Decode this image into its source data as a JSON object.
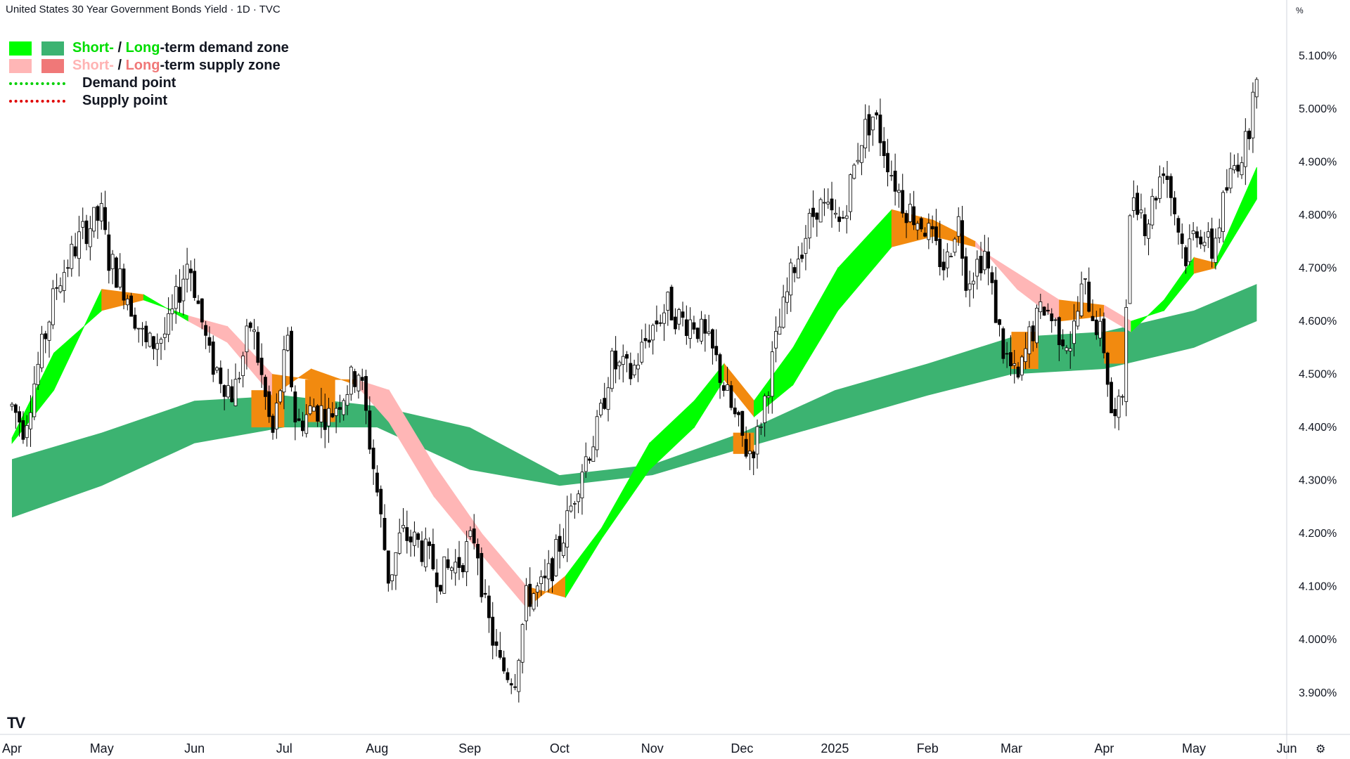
{
  "header": {
    "title": "United States 30 Year Government Bonds Yield · 1D · TVC",
    "unit": "%"
  },
  "legend": {
    "demand": {
      "short": "Short-",
      "sep": " / ",
      "long": "Long",
      "rest": "-term demand zone"
    },
    "supply": {
      "short": "Short-",
      "sep": " / ",
      "long": "Long",
      "rest": "-term supply zone"
    },
    "demand_point": "Demand point",
    "supply_point": "Supply point"
  },
  "colors": {
    "short_demand": "#00ff00",
    "long_demand": "#3cb371",
    "short_supply": "#ffb6b6",
    "long_supply": "#f07878",
    "overlap": "#f28a0f",
    "demand_point": "#00d000",
    "supply_point": "#e00000",
    "candle": "#000000",
    "legend_green_text": "#00dd00",
    "legend_pink_text": "#ffb3b3"
  },
  "footer": {
    "logo": "TV",
    "settings_icon": "gear-icon"
  },
  "chart_data": {
    "type": "candlestick",
    "title": "United States 30 Year Government Bonds Yield · 1D · TVC",
    "y_unit": "%",
    "ylim": [
      3.86,
      5.16
    ],
    "y_ticks": [
      "5.100%",
      "5.000%",
      "4.900%",
      "4.800%",
      "4.700%",
      "4.600%",
      "4.500%",
      "4.400%",
      "4.300%",
      "4.200%",
      "4.100%",
      "4.000%",
      "3.900%"
    ],
    "x_ticks": [
      "Apr",
      "May",
      "Jun",
      "Jul",
      "Aug",
      "Sep",
      "Oct",
      "Nov",
      "Dec",
      "2025",
      "Feb",
      "Mar",
      "Apr",
      "May",
      "Jun"
    ],
    "price_path": [
      {
        "date": "2024-04-01",
        "yield": 4.44
      },
      {
        "date": "2024-04-05",
        "yield": 4.4
      },
      {
        "date": "2024-04-16",
        "yield": 4.67
      },
      {
        "date": "2024-04-25",
        "yield": 4.77
      },
      {
        "date": "2024-05-01",
        "yield": 4.8
      },
      {
        "date": "2024-05-03",
        "yield": 4.72
      },
      {
        "date": "2024-05-09",
        "yield": 4.66
      },
      {
        "date": "2024-05-16",
        "yield": 4.55
      },
      {
        "date": "2024-05-23",
        "yield": 4.58
      },
      {
        "date": "2024-05-30",
        "yield": 4.72
      },
      {
        "date": "2024-06-06",
        "yield": 4.53
      },
      {
        "date": "2024-06-14",
        "yield": 4.46
      },
      {
        "date": "2024-06-20",
        "yield": 4.6
      },
      {
        "date": "2024-06-27",
        "yield": 4.38
      },
      {
        "date": "2024-07-02",
        "yield": 4.56
      },
      {
        "date": "2024-07-05",
        "yield": 4.4
      },
      {
        "date": "2024-07-11",
        "yield": 4.44
      },
      {
        "date": "2024-07-16",
        "yield": 4.42
      },
      {
        "date": "2024-07-19",
        "yield": 4.45
      },
      {
        "date": "2024-07-26",
        "yield": 4.51
      },
      {
        "date": "2024-08-01",
        "yield": 4.28
      },
      {
        "date": "2024-08-05",
        "yield": 4.11
      },
      {
        "date": "2024-08-09",
        "yield": 4.2
      },
      {
        "date": "2024-08-15",
        "yield": 4.18
      },
      {
        "date": "2024-08-22",
        "yield": 4.12
      },
      {
        "date": "2024-08-29",
        "yield": 4.15
      },
      {
        "date": "2024-09-03",
        "yield": 4.2
      },
      {
        "date": "2024-09-06",
        "yield": 4.06
      },
      {
        "date": "2024-09-11",
        "yield": 3.95
      },
      {
        "date": "2024-09-16",
        "yield": 3.93
      },
      {
        "date": "2024-09-20",
        "yield": 4.08
      },
      {
        "date": "2024-09-26",
        "yield": 4.1
      },
      {
        "date": "2024-10-03",
        "yield": 4.21
      },
      {
        "date": "2024-10-08",
        "yield": 4.32
      },
      {
        "date": "2024-10-14",
        "yield": 4.4
      },
      {
        "date": "2024-10-18",
        "yield": 4.52
      },
      {
        "date": "2024-10-25",
        "yield": 4.5
      },
      {
        "date": "2024-10-31",
        "yield": 4.58
      },
      {
        "date": "2024-11-06",
        "yield": 4.63
      },
      {
        "date": "2024-11-11",
        "yield": 4.6
      },
      {
        "date": "2024-11-15",
        "yield": 4.6
      },
      {
        "date": "2024-11-22",
        "yield": 4.53
      },
      {
        "date": "2024-11-27",
        "yield": 4.44
      },
      {
        "date": "2024-12-03",
        "yield": 4.35
      },
      {
        "date": "2024-12-06",
        "yield": 4.38
      },
      {
        "date": "2024-12-12",
        "yield": 4.55
      },
      {
        "date": "2024-12-18",
        "yield": 4.7
      },
      {
        "date": "2024-12-26",
        "yield": 4.82
      },
      {
        "date": "2025-01-03",
        "yield": 4.78
      },
      {
        "date": "2025-01-10",
        "yield": 4.95
      },
      {
        "date": "2025-01-14",
        "yield": 4.99
      },
      {
        "date": "2025-01-20",
        "yield": 4.88
      },
      {
        "date": "2025-01-24",
        "yield": 4.82
      },
      {
        "date": "2025-01-31",
        "yield": 4.78
      },
      {
        "date": "2025-02-04",
        "yield": 4.73
      },
      {
        "date": "2025-02-07",
        "yield": 4.7
      },
      {
        "date": "2025-02-11",
        "yield": 4.8
      },
      {
        "date": "2025-02-14",
        "yield": 4.68
      },
      {
        "date": "2025-02-20",
        "yield": 4.73
      },
      {
        "date": "2025-02-26",
        "yield": 4.55
      },
      {
        "date": "2025-03-03",
        "yield": 4.48
      },
      {
        "date": "2025-03-07",
        "yield": 4.57
      },
      {
        "date": "2025-03-12",
        "yield": 4.63
      },
      {
        "date": "2025-03-17",
        "yield": 4.58
      },
      {
        "date": "2025-03-21",
        "yield": 4.56
      },
      {
        "date": "2025-03-25",
        "yield": 4.67
      },
      {
        "date": "2025-03-28",
        "yield": 4.62
      },
      {
        "date": "2025-04-01",
        "yield": 4.55
      },
      {
        "date": "2025-04-04",
        "yield": 4.4
      },
      {
        "date": "2025-04-07",
        "yield": 4.45
      },
      {
        "date": "2025-04-09",
        "yield": 4.75
      },
      {
        "date": "2025-04-11",
        "yield": 4.85
      },
      {
        "date": "2025-04-15",
        "yield": 4.78
      },
      {
        "date": "2025-04-21",
        "yield": 4.9
      },
      {
        "date": "2025-04-28",
        "yield": 4.72
      },
      {
        "date": "2025-05-02",
        "yield": 4.78
      },
      {
        "date": "2025-05-07",
        "yield": 4.73
      },
      {
        "date": "2025-05-12",
        "yield": 4.85
      },
      {
        "date": "2025-05-15",
        "yield": 4.9
      },
      {
        "date": "2025-05-19",
        "yield": 4.94
      },
      {
        "date": "2025-05-21",
        "yield": 5.08
      },
      {
        "date": "2025-05-22",
        "yield": 5.04
      }
    ],
    "zones": {
      "long_demand": [
        {
          "date": "2024-04-01",
          "top": 4.34,
          "bottom": 4.23
        },
        {
          "date": "2024-05-01",
          "top": 4.39,
          "bottom": 4.29
        },
        {
          "date": "2024-06-01",
          "top": 4.45,
          "bottom": 4.37
        },
        {
          "date": "2024-07-01",
          "top": 4.46,
          "bottom": 4.4
        },
        {
          "date": "2024-08-01",
          "top": 4.44,
          "bottom": 4.4
        },
        {
          "date": "2024-09-01",
          "top": 4.4,
          "bottom": 4.32
        },
        {
          "date": "2024-10-01",
          "top": 4.31,
          "bottom": 4.29
        },
        {
          "date": "2024-11-01",
          "top": 4.33,
          "bottom": 4.31
        },
        {
          "date": "2024-12-01",
          "top": 4.39,
          "bottom": 4.36
        },
        {
          "date": "2025-01-01",
          "top": 4.47,
          "bottom": 4.41
        },
        {
          "date": "2025-02-01",
          "top": 4.52,
          "bottom": 4.46
        },
        {
          "date": "2025-03-01",
          "top": 4.57,
          "bottom": 4.5
        },
        {
          "date": "2025-04-01",
          "top": 4.58,
          "bottom": 4.51
        },
        {
          "date": "2025-05-01",
          "top": 4.62,
          "bottom": 4.55
        },
        {
          "date": "2025-05-22",
          "top": 4.67,
          "bottom": 4.6
        }
      ],
      "short_band": [
        {
          "date": "2024-04-01",
          "a": 4.37,
          "b": 4.38,
          "zone": "demand"
        },
        {
          "date": "2024-04-15",
          "a": 4.47,
          "b": 4.54,
          "zone": "demand"
        },
        {
          "date": "2024-05-01",
          "a": 4.66,
          "b": 4.62,
          "zone": "demand"
        },
        {
          "date": "2024-05-15",
          "a": 4.65,
          "b": 4.64,
          "zone": "overlap"
        },
        {
          "date": "2024-05-30",
          "a": 4.6,
          "b": 4.61,
          "zone": "demand"
        },
        {
          "date": "2024-06-12",
          "a": 4.56,
          "b": 4.59,
          "zone": "supply"
        },
        {
          "date": "2024-06-27",
          "a": 4.46,
          "b": 4.5,
          "zone": "supply"
        },
        {
          "date": "2024-07-10",
          "a": 4.51,
          "b": 4.49,
          "zone": "overlap"
        },
        {
          "date": "2024-07-25",
          "a": 4.48,
          "b": 4.49,
          "zone": "overlap"
        },
        {
          "date": "2024-08-05",
          "a": 4.41,
          "b": 4.47,
          "zone": "supply"
        },
        {
          "date": "2024-08-20",
          "a": 4.27,
          "b": 4.33,
          "zone": "supply"
        },
        {
          "date": "2024-09-05",
          "a": 4.16,
          "b": 4.2,
          "zone": "supply"
        },
        {
          "date": "2024-09-20",
          "a": 4.06,
          "b": 4.1,
          "zone": "supply"
        },
        {
          "date": "2024-10-03",
          "a": 4.12,
          "b": 4.08,
          "zone": "overlap"
        },
        {
          "date": "2024-10-15",
          "a": 4.21,
          "b": 4.19,
          "zone": "demand"
        },
        {
          "date": "2024-10-31",
          "a": 4.37,
          "b": 4.32,
          "zone": "demand"
        },
        {
          "date": "2024-11-15",
          "a": 4.45,
          "b": 4.4,
          "zone": "demand"
        },
        {
          "date": "2024-11-25",
          "a": 4.52,
          "b": 4.49,
          "zone": "demand"
        },
        {
          "date": "2024-12-05",
          "a": 4.45,
          "b": 4.42,
          "zone": "overlap"
        },
        {
          "date": "2024-12-18",
          "a": 4.55,
          "b": 4.48,
          "zone": "demand"
        },
        {
          "date": "2025-01-02",
          "a": 4.7,
          "b": 4.62,
          "zone": "demand"
        },
        {
          "date": "2025-01-20",
          "a": 4.81,
          "b": 4.74,
          "zone": "demand"
        },
        {
          "date": "2025-02-03",
          "a": 4.79,
          "b": 4.76,
          "zone": "overlap"
        },
        {
          "date": "2025-02-17",
          "a": 4.75,
          "b": 4.74,
          "zone": "overlap"
        },
        {
          "date": "2025-03-03",
          "a": 4.66,
          "b": 4.69,
          "zone": "supply"
        },
        {
          "date": "2025-03-17",
          "a": 4.6,
          "b": 4.64,
          "zone": "supply"
        },
        {
          "date": "2025-04-01",
          "a": 4.61,
          "b": 4.63,
          "zone": "overlap"
        },
        {
          "date": "2025-04-10",
          "a": 4.58,
          "b": 4.6,
          "zone": "supply"
        },
        {
          "date": "2025-04-21",
          "a": 4.64,
          "b": 4.62,
          "zone": "demand"
        },
        {
          "date": "2025-05-01",
          "a": 4.72,
          "b": 4.69,
          "zone": "demand"
        },
        {
          "date": "2025-05-08",
          "a": 4.71,
          "b": 4.7,
          "zone": "overlap"
        },
        {
          "date": "2025-05-22",
          "a": 4.89,
          "b": 4.83,
          "zone": "demand"
        }
      ],
      "overlap_blocks": [
        {
          "from": "2024-06-20",
          "to": "2024-07-01",
          "top": 4.47,
          "bottom": 4.4
        },
        {
          "from": "2024-07-08",
          "to": "2024-07-18",
          "top": 4.49,
          "bottom": 4.41
        },
        {
          "from": "2024-11-28",
          "to": "2024-12-05",
          "top": 4.39,
          "bottom": 4.35
        },
        {
          "from": "2025-03-01",
          "to": "2025-03-10",
          "top": 4.58,
          "bottom": 4.51
        },
        {
          "from": "2025-04-01",
          "to": "2025-04-08",
          "top": 4.58,
          "bottom": 4.52
        }
      ]
    }
  }
}
